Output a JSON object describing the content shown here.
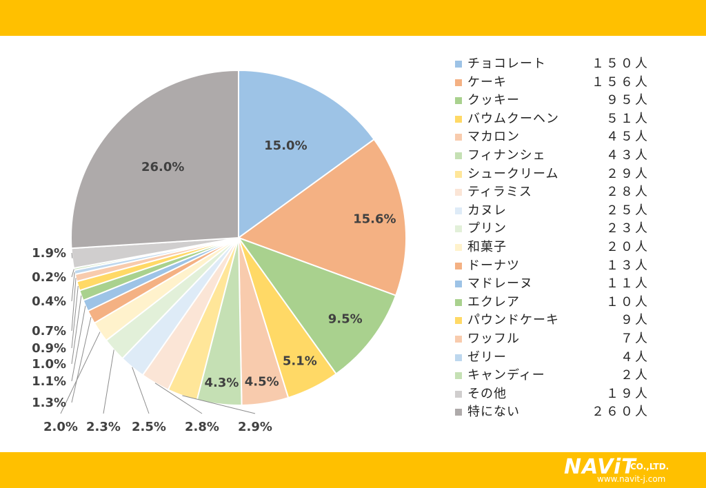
{
  "chart_data": {
    "type": "pie",
    "categories": [
      "チョコレート",
      "ケーキ",
      "クッキー",
      "バウムクーヘン",
      "マカロン",
      "フィナンシェ",
      "シュークリーム",
      "ティラミス",
      "カヌレ",
      "プリン",
      "和菓子",
      "ドーナツ",
      "マドレーヌ",
      "エクレア",
      "パウンドケーキ",
      "ワッフル",
      "ゼリー",
      "キャンディー",
      "その他",
      "特にない"
    ],
    "counts": [
      "１５０人",
      "１５６人",
      "９５人",
      "５１人",
      "４５人",
      "４３人",
      "２９人",
      "２８人",
      "２５人",
      "２３人",
      "２０人",
      "１３人",
      "１１人",
      "１０人",
      "９人",
      "７人",
      "４人",
      "２人",
      "１９人",
      "２６０人"
    ],
    "values": [
      150,
      156,
      95,
      51,
      45,
      43,
      29,
      28,
      25,
      23,
      20,
      13,
      11,
      10,
      9,
      7,
      4,
      2,
      19,
      260
    ],
    "labels": [
      "15.0%",
      "15.6%",
      "9.5%",
      "5.1%",
      "4.5%",
      "4.3%",
      "2.9%",
      "2.8%",
      "2.5%",
      "2.3%",
      "2.0%",
      "1.3%",
      "1.1%",
      "1.0%",
      "0.9%",
      "0.7%",
      "0.4%",
      "0.2%",
      "1.9%",
      "26.0%"
    ],
    "colors": [
      "#9DC3E6",
      "#F4B183",
      "#A9D18E",
      "#FFD966",
      "#F8CBAD",
      "#C5E0B4",
      "#FFE699",
      "#FBE5D6",
      "#DEEBF7",
      "#E2F0D9",
      "#FFF2CC",
      "#F4B183",
      "#9DC3E6",
      "#A9D18E",
      "#FFD966",
      "#F8CBAD",
      "#BDD7EE",
      "#C5E0B4",
      "#D0CECE",
      "#AEAAAA"
    ]
  },
  "branding": {
    "logo_text": "NAViT",
    "logo_suffix": "CO.,LTD.",
    "url": "www.navit-j.com"
  }
}
